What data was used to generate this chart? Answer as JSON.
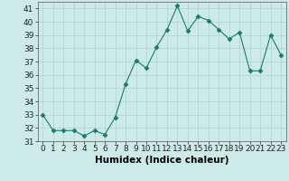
{
  "xlabel": "Humidex (Indice chaleur)",
  "x": [
    0,
    1,
    2,
    3,
    4,
    5,
    6,
    7,
    8,
    9,
    10,
    11,
    12,
    13,
    14,
    15,
    16,
    17,
    18,
    19,
    20,
    21,
    22,
    23
  ],
  "y": [
    33,
    31.8,
    31.8,
    31.8,
    31.4,
    31.8,
    31.5,
    32.8,
    35.3,
    37.1,
    36.5,
    38.1,
    39.4,
    41.2,
    39.3,
    40.4,
    40.1,
    39.4,
    38.7,
    39.2,
    36.3,
    36.3,
    39.0,
    37.5
  ],
  "line_color": "#1a7a6e",
  "marker": "D",
  "marker_size": 2.5,
  "background_color": "#cceae7",
  "grid_color": "#aed4d0",
  "ylim": [
    31,
    41.5
  ],
  "yticks": [
    31,
    32,
    33,
    34,
    35,
    36,
    37,
    38,
    39,
    40,
    41
  ],
  "xlim": [
    -0.5,
    23.5
  ],
  "tick_fontsize": 6.5,
  "label_fontsize": 7.5
}
